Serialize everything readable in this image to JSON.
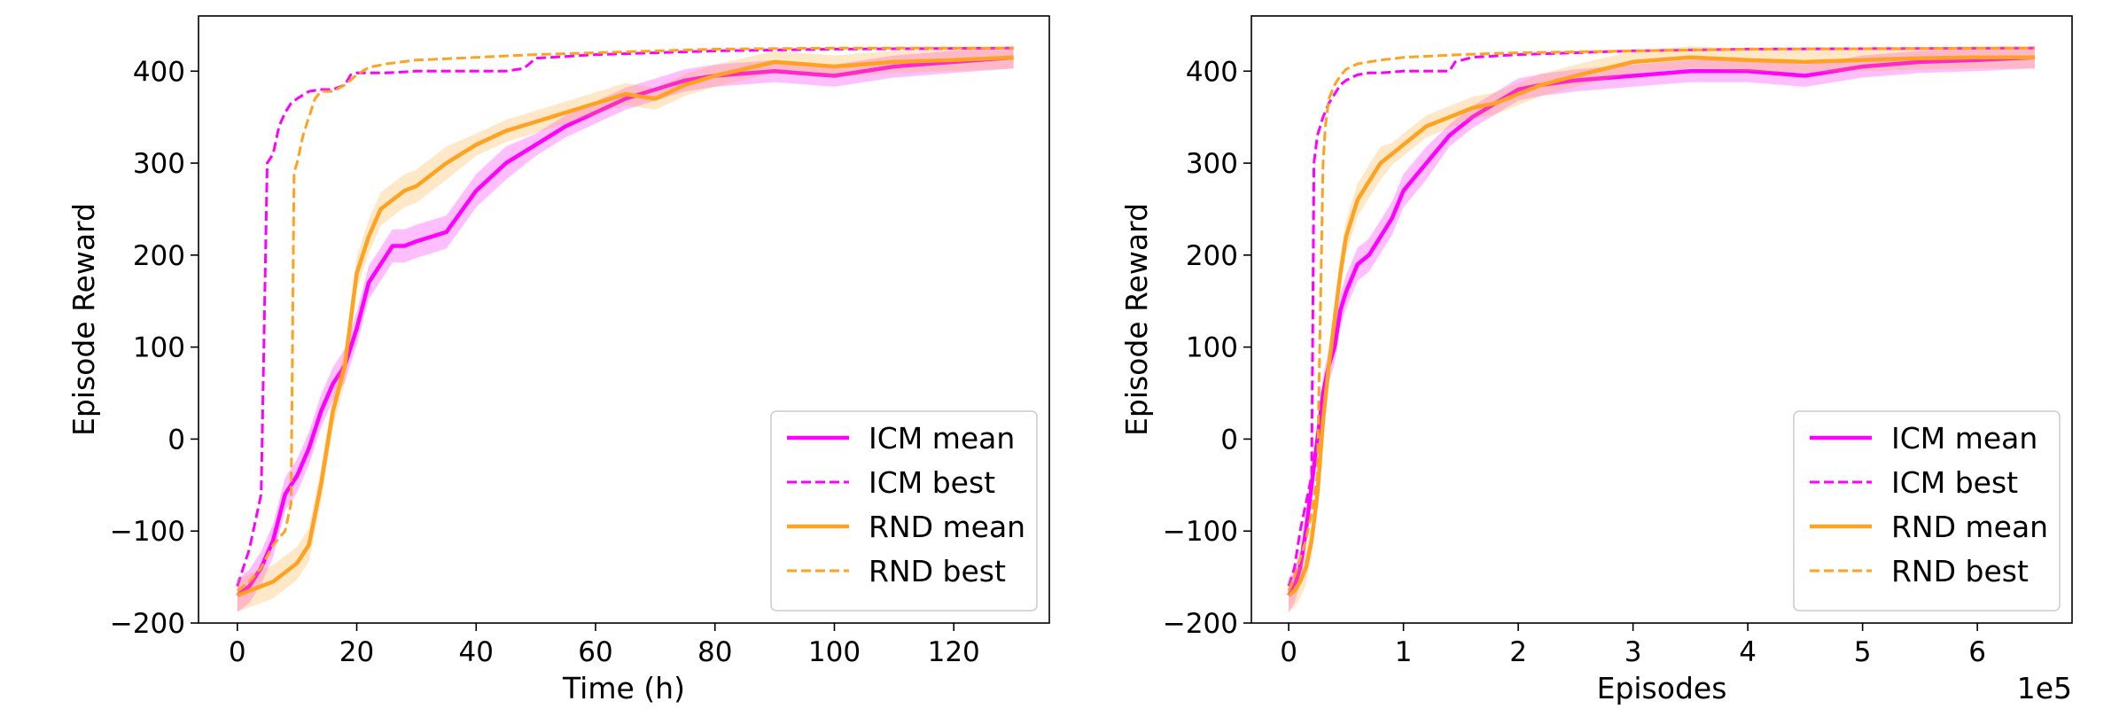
{
  "chart_data": [
    {
      "type": "line",
      "title": "",
      "xlabel": "Time (h)",
      "ylabel": "Episode Reward",
      "xlim": [
        -6.5,
        136
      ],
      "ylim": [
        -200,
        460
      ],
      "xticks": [
        0,
        20,
        40,
        60,
        80,
        100,
        120
      ],
      "xtick_labels": [
        "0",
        "20",
        "40",
        "60",
        "80",
        "100",
        "120"
      ],
      "yticks": [
        -200,
        -100,
        0,
        100,
        200,
        300,
        400
      ],
      "ytick_labels": [
        "−200",
        "−100",
        "0",
        "100",
        "200",
        "300",
        "400"
      ],
      "x_offset_text": "",
      "grid": false,
      "legend_position": "lower-right",
      "series": [
        {
          "name": "ICM mean",
          "color": "#ff00ff",
          "style": "solid",
          "band": true,
          "x": [
            0,
            2,
            4,
            6,
            8,
            10,
            12,
            14,
            16,
            18,
            20,
            22,
            24,
            26,
            28,
            30,
            35,
            40,
            45,
            50,
            55,
            60,
            65,
            70,
            75,
            80,
            90,
            100,
            110,
            120,
            130
          ],
          "y": [
            -170,
            -160,
            -140,
            -110,
            -60,
            -40,
            -10,
            30,
            60,
            80,
            120,
            170,
            190,
            210,
            210,
            215,
            225,
            270,
            300,
            320,
            340,
            355,
            370,
            380,
            390,
            395,
            400,
            395,
            405,
            410,
            415
          ]
        },
        {
          "name": "ICM best",
          "color": "#ff00ff",
          "style": "dashed",
          "x": [
            0,
            1,
            2,
            3,
            4,
            5,
            6,
            7,
            8,
            9,
            10,
            12,
            14,
            16,
            18,
            19,
            20,
            25,
            30,
            45,
            48,
            50,
            55,
            60,
            70,
            80,
            100,
            130
          ],
          "y": [
            -160,
            -140,
            -120,
            -90,
            -60,
            300,
            310,
            340,
            355,
            365,
            370,
            378,
            380,
            380,
            385,
            396,
            398,
            398,
            400,
            400,
            403,
            414,
            416,
            418,
            420,
            422,
            424,
            425
          ]
        },
        {
          "name": "RND mean",
          "color": "#ffa220",
          "style": "solid",
          "band": true,
          "x": [
            0,
            2,
            4,
            6,
            8,
            10,
            12,
            14,
            16,
            18,
            20,
            22,
            24,
            26,
            28,
            30,
            35,
            40,
            45,
            50,
            55,
            60,
            65,
            70,
            75,
            80,
            90,
            100,
            110,
            120,
            130
          ],
          "y": [
            -170,
            -165,
            -160,
            -155,
            -145,
            -135,
            -115,
            -50,
            30,
            80,
            180,
            220,
            250,
            260,
            270,
            275,
            300,
            320,
            335,
            345,
            355,
            365,
            375,
            370,
            385,
            395,
            410,
            405,
            410,
            412,
            415
          ]
        },
        {
          "name": "RND best",
          "color": "#ffa220",
          "style": "dashed",
          "x": [
            0,
            2,
            4,
            6,
            8,
            9,
            9.5,
            10,
            11,
            12,
            13,
            14,
            16,
            18,
            20,
            22,
            25,
            30,
            40,
            50,
            60,
            70,
            80,
            100,
            130
          ],
          "y": [
            -165,
            -155,
            -140,
            -115,
            -100,
            -70,
            290,
            300,
            330,
            350,
            370,
            378,
            378,
            385,
            396,
            404,
            408,
            412,
            415,
            418,
            420,
            422,
            424,
            425,
            425
          ]
        }
      ]
    },
    {
      "type": "line",
      "title": "",
      "xlabel": "Episodes",
      "ylabel": "Episode Reward",
      "xlim": [
        -0.325,
        6.825
      ],
      "ylim": [
        -200,
        460
      ],
      "xticks": [
        0,
        1,
        2,
        3,
        4,
        5,
        6
      ],
      "xtick_labels": [
        "0",
        "1",
        "2",
        "3",
        "4",
        "5",
        "6"
      ],
      "yticks": [
        -200,
        -100,
        0,
        100,
        200,
        300,
        400
      ],
      "ytick_labels": [
        "−200",
        "−100",
        "0",
        "100",
        "200",
        "300",
        "400"
      ],
      "x_offset_text": "1e5",
      "grid": false,
      "legend_position": "lower-right",
      "series": [
        {
          "name": "ICM mean",
          "color": "#ff00ff",
          "style": "solid",
          "band": true,
          "x": [
            0,
            0.05,
            0.1,
            0.15,
            0.2,
            0.25,
            0.3,
            0.35,
            0.4,
            0.45,
            0.5,
            0.6,
            0.7,
            0.8,
            0.9,
            1.0,
            1.2,
            1.4,
            1.6,
            1.8,
            2.0,
            2.2,
            2.5,
            3.0,
            3.5,
            4.0,
            4.5,
            5.0,
            5.5,
            6.0,
            6.5
          ],
          "y": [
            -170,
            -160,
            -140,
            -100,
            -50,
            0,
            50,
            80,
            100,
            140,
            160,
            190,
            200,
            220,
            240,
            270,
            300,
            330,
            350,
            365,
            380,
            385,
            390,
            395,
            400,
            400,
            395,
            405,
            410,
            412,
            415
          ]
        },
        {
          "name": "ICM best",
          "color": "#ff00ff",
          "style": "dashed",
          "x": [
            0,
            0.05,
            0.1,
            0.15,
            0.2,
            0.22,
            0.25,
            0.3,
            0.35,
            0.4,
            0.45,
            0.5,
            0.6,
            0.7,
            0.8,
            1.0,
            1.4,
            1.45,
            1.6,
            2.0,
            3.0,
            4.0,
            6.5
          ],
          "y": [
            -160,
            -140,
            -100,
            -70,
            -40,
            300,
            330,
            350,
            365,
            375,
            385,
            390,
            396,
            398,
            398,
            400,
            400,
            410,
            415,
            418,
            422,
            424,
            425
          ]
        },
        {
          "name": "RND mean",
          "color": "#ffa220",
          "style": "solid",
          "band": true,
          "x": [
            0,
            0.05,
            0.1,
            0.15,
            0.2,
            0.25,
            0.3,
            0.35,
            0.4,
            0.45,
            0.5,
            0.6,
            0.7,
            0.8,
            0.9,
            1.0,
            1.2,
            1.4,
            1.6,
            1.8,
            2.0,
            2.2,
            2.5,
            3.0,
            3.5,
            4.0,
            4.5,
            5.0,
            5.5,
            6.0,
            6.5
          ],
          "y": [
            -170,
            -165,
            -155,
            -140,
            -110,
            -60,
            20,
            80,
            130,
            180,
            220,
            260,
            280,
            300,
            310,
            320,
            340,
            350,
            360,
            365,
            375,
            385,
            395,
            410,
            415,
            412,
            410,
            412,
            414,
            415,
            415
          ]
        },
        {
          "name": "RND best",
          "color": "#ffa220",
          "style": "dashed",
          "x": [
            0,
            0.05,
            0.1,
            0.15,
            0.2,
            0.25,
            0.3,
            0.32,
            0.35,
            0.4,
            0.45,
            0.5,
            0.6,
            0.8,
            1.0,
            1.5,
            2.0,
            3.0,
            4.0,
            6.5
          ],
          "y": [
            -165,
            -150,
            -130,
            -110,
            -80,
            -40,
            300,
            340,
            370,
            385,
            395,
            402,
            408,
            412,
            415,
            418,
            420,
            422,
            424,
            425
          ]
        }
      ]
    }
  ]
}
